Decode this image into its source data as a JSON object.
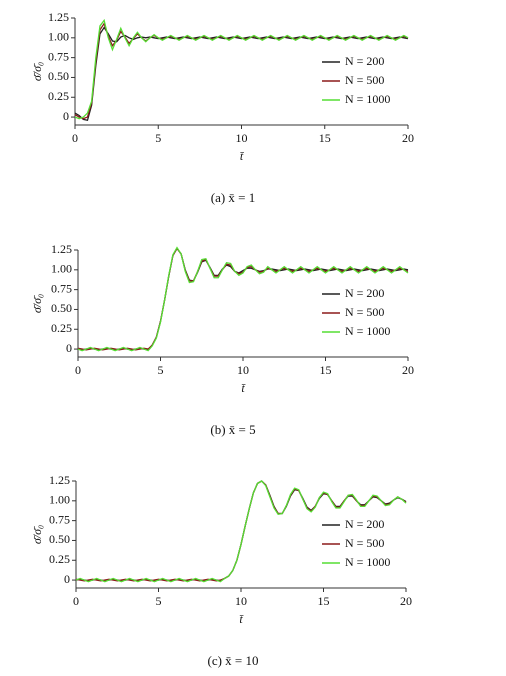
{
  "chart_data": [
    {
      "type": "line",
      "caption": "(a) x̄ = 1",
      "xlabel": "t̄",
      "ylabel": "σ̄/σ̄₀",
      "xlim": [
        0,
        20
      ],
      "xticks": [
        0,
        5,
        10,
        15,
        20
      ],
      "ylim": [
        -0.1,
        1.25
      ],
      "yticks": [
        0,
        0.25,
        {
          "value": 0.5,
          "label": "0.50"
        },
        0.75,
        {
          "value": 1,
          "label": "1.00"
        },
        1.25
      ],
      "x": [
        0,
        0.25,
        0.5,
        0.75,
        1,
        1.25,
        1.5,
        1.75,
        2,
        2.25,
        2.5,
        2.75,
        3,
        3.25,
        3.5,
        3.75,
        4,
        4.25,
        4.5,
        4.75,
        5,
        5.25,
        5.5,
        5.75,
        6,
        6.25,
        6.5,
        6.75,
        7,
        7.25,
        7.5,
        7.75,
        8,
        8.25,
        8.5,
        8.75,
        9,
        9.25,
        9.5,
        9.75,
        10,
        10.25,
        10.5,
        10.75,
        11,
        11.25,
        11.5,
        11.75,
        12,
        12.25,
        12.5,
        12.75,
        13,
        13.25,
        13.5,
        13.75,
        14,
        14.25,
        14.5,
        14.75,
        15,
        15.25,
        15.5,
        15.75,
        16,
        16.25,
        16.5,
        16.75,
        17,
        17.25,
        17.5,
        17.75,
        18,
        18.25,
        18.5,
        18.75,
        19,
        19.25,
        19.5,
        19.75,
        20
      ],
      "series": [
        {
          "name": "N = 200",
          "color": "#222222",
          "values": [
            0.05,
            0.02,
            -0.03,
            -0.04,
            0.15,
            0.65,
            1.05,
            1.13,
            1.05,
            0.96,
            0.95,
            1.01,
            1.03,
            1,
            0.98,
            1,
            1.01,
            1,
            1.01,
            1,
            0.99,
            1,
            1.01,
            1,
            0.99,
            1,
            1.01,
            1,
            0.99,
            1,
            1.01,
            1,
            0.99,
            1,
            1.01,
            1,
            0.99,
            1,
            1.01,
            1,
            0.99,
            1,
            1.01,
            1,
            0.99,
            1,
            1.01,
            1,
            0.99,
            1,
            1.01,
            1,
            0.99,
            1,
            1.01,
            1,
            0.99,
            1,
            1.01,
            1,
            0.99,
            1,
            1.01,
            1,
            0.99,
            1,
            1.01,
            1,
            0.99,
            1,
            1.01,
            1,
            0.99,
            1,
            1.01,
            1,
            0.99,
            1,
            1.01,
            1,
            0.99
          ]
        },
        {
          "name": "N = 500",
          "color": "#8b1a1a",
          "values": [
            0.03,
            0,
            -0.02,
            0,
            0.18,
            0.7,
            1.1,
            1.18,
            1.02,
            0.9,
            0.97,
            1.08,
            1.01,
            0.93,
            0.99,
            1.05,
            1,
            0.96,
            1,
            1.03,
            1,
            0.98,
            1,
            1.02,
            1,
            0.98,
            1,
            1.02,
            1,
            0.98,
            1,
            1.02,
            1,
            0.98,
            1,
            1.02,
            1,
            0.98,
            1,
            1.02,
            1,
            0.98,
            1,
            1.02,
            1,
            0.98,
            1,
            1.02,
            1,
            0.98,
            1,
            1.02,
            1,
            0.98,
            1,
            1.02,
            1,
            0.98,
            1,
            1.02,
            1,
            0.98,
            1,
            1.02,
            1,
            0.98,
            1,
            1.02,
            1,
            0.98,
            1,
            1.02,
            1,
            0.98,
            1,
            1.02,
            1,
            0.98,
            1,
            1.02,
            1
          ]
        },
        {
          "name": "N = 1000",
          "color": "#55dd33",
          "values": [
            0,
            -0.02,
            0,
            0.05,
            0.2,
            0.75,
            1.15,
            1.22,
            1,
            0.85,
            0.98,
            1.12,
            1,
            0.9,
            1,
            1.07,
            1,
            0.95,
            1,
            1.04,
            1,
            0.97,
            1,
            1.03,
            1,
            0.97,
            1,
            1.03,
            1,
            0.97,
            1,
            1.03,
            1,
            0.97,
            1,
            1.03,
            1,
            0.97,
            1,
            1.03,
            1,
            0.97,
            1,
            1.03,
            1,
            0.97,
            1,
            1.03,
            1,
            0.97,
            1,
            1.03,
            1,
            0.97,
            1,
            1.03,
            1,
            0.97,
            1,
            1.03,
            1,
            0.97,
            1,
            1.03,
            1,
            0.97,
            1,
            1.03,
            1,
            0.97,
            1,
            1.03,
            1,
            0.97,
            1,
            1.03,
            1,
            0.97,
            1,
            1.03,
            1
          ]
        }
      ]
    },
    {
      "type": "line",
      "caption": "(b) x̄ = 5",
      "xlabel": "t̄",
      "ylabel": "σ̄/σ̄₀",
      "xlim": [
        0,
        20
      ],
      "xticks": [
        0,
        5,
        10,
        15,
        20
      ],
      "ylim": [
        -0.1,
        1.25
      ],
      "yticks": [
        0,
        0.25,
        {
          "value": 0.5,
          "label": "0.50"
        },
        0.75,
        {
          "value": 1,
          "label": "1.00"
        },
        1.25
      ],
      "x": [
        0,
        0.25,
        0.5,
        0.75,
        1,
        1.25,
        1.5,
        1.75,
        2,
        2.25,
        2.5,
        2.75,
        3,
        3.25,
        3.5,
        3.75,
        4,
        4.25,
        4.5,
        4.75,
        5,
        5.25,
        5.5,
        5.75,
        6,
        6.25,
        6.5,
        6.75,
        7,
        7.25,
        7.5,
        7.75,
        8,
        8.25,
        8.5,
        8.75,
        9,
        9.25,
        9.5,
        9.75,
        10,
        10.25,
        10.5,
        10.75,
        11,
        11.25,
        11.5,
        11.75,
        12,
        12.25,
        12.5,
        12.75,
        13,
        13.25,
        13.5,
        13.75,
        14,
        14.25,
        14.5,
        14.75,
        15,
        15.25,
        15.5,
        15.75,
        16,
        16.25,
        16.5,
        16.75,
        17,
        17.25,
        17.5,
        17.75,
        18,
        18.25,
        18.5,
        18.75,
        19,
        19.25,
        19.5,
        19.75,
        20
      ],
      "series": [
        {
          "name": "N = 200",
          "color": "#222222",
          "values": [
            0,
            -0.01,
            0,
            0.01,
            0,
            -0.01,
            0,
            0.01,
            0,
            -0.01,
            0,
            0.01,
            0,
            -0.01,
            0,
            0.01,
            0,
            -0.01,
            0.05,
            0.15,
            0.35,
            0.62,
            0.92,
            1.18,
            1.27,
            1.2,
            1,
            0.87,
            0.86,
            0.97,
            1.1,
            1.12,
            1.03,
            0.93,
            0.93,
            1.01,
            1.06,
            1.04,
            0.98,
            0.96,
            0.99,
            1.02,
            1.02,
            1,
            0.98,
            0.99,
            1.01,
            1.01,
            1,
            0.99,
            1,
            1.01,
            1,
            0.99,
            1,
            1.01,
            1,
            0.99,
            1,
            1.01,
            1,
            0.99,
            1,
            1.01,
            1,
            0.99,
            1,
            1.01,
            1,
            0.99,
            1,
            1.01,
            1,
            0.99,
            1,
            1.01,
            1,
            0.99,
            1,
            1.01,
            1
          ]
        },
        {
          "name": "N = 500",
          "color": "#8b1a1a",
          "values": [
            0.01,
            0,
            -0.01,
            0,
            0.01,
            0,
            -0.01,
            0,
            0.01,
            0,
            -0.01,
            0,
            0.01,
            0,
            -0.01,
            0,
            0.01,
            0,
            0.05,
            0.15,
            0.35,
            0.62,
            0.92,
            1.18,
            1.27,
            1.2,
            0.99,
            0.86,
            0.86,
            0.98,
            1.11,
            1.13,
            1.02,
            0.92,
            0.92,
            1,
            1.07,
            1.06,
            0.98,
            0.95,
            0.97,
            1.03,
            1.04,
            1,
            0.97,
            0.98,
            1.02,
            1,
            0.98,
            1,
            1.02,
            1,
            0.98,
            1,
            1.02,
            1,
            0.98,
            1,
            1.02,
            1,
            0.98,
            1,
            1.02,
            1,
            0.98,
            1,
            1.02,
            1,
            0.98,
            1,
            1.02,
            1,
            0.98,
            1,
            1.02,
            1,
            0.98,
            1,
            1.02,
            1,
            0.98
          ]
        },
        {
          "name": "N = 1000",
          "color": "#55dd33",
          "values": [
            0,
            -0.02,
            0,
            0.02,
            0,
            -0.02,
            0,
            0.02,
            0,
            -0.02,
            0,
            0.02,
            0,
            -0.02,
            0,
            0.02,
            0,
            -0.02,
            0.04,
            0.14,
            0.34,
            0.62,
            0.93,
            1.19,
            1.28,
            1.2,
            0.98,
            0.84,
            0.85,
            0.98,
            1.13,
            1.14,
            1.02,
            0.9,
            0.9,
            1,
            1.09,
            1.08,
            0.98,
            0.93,
            0.96,
            1.04,
            1.06,
            1,
            0.95,
            0.97,
            1.04,
            1,
            0.96,
            1,
            1.04,
            1,
            0.96,
            1,
            1.04,
            1,
            0.96,
            1,
            1.04,
            1,
            0.96,
            1,
            1.04,
            1,
            0.96,
            1,
            1.04,
            1,
            0.96,
            1,
            1.04,
            1,
            0.96,
            1,
            1.04,
            1,
            0.96,
            1,
            1.04,
            1,
            0.96
          ]
        }
      ]
    },
    {
      "type": "line",
      "caption": "(c) x̄ = 10",
      "xlabel": "t̄",
      "ylabel": "σ̄/σ̄₀",
      "xlim": [
        0,
        20
      ],
      "xticks": [
        0,
        5,
        10,
        15,
        20
      ],
      "ylim": [
        -0.1,
        1.25
      ],
      "yticks": [
        0,
        0.25,
        {
          "value": 0.5,
          "label": "0.50"
        },
        0.75,
        {
          "value": 1,
          "label": "1.00"
        },
        1.25
      ],
      "x": [
        0,
        0.25,
        0.5,
        0.75,
        1,
        1.25,
        1.5,
        1.75,
        2,
        2.25,
        2.5,
        2.75,
        3,
        3.25,
        3.5,
        3.75,
        4,
        4.25,
        4.5,
        4.75,
        5,
        5.25,
        5.5,
        5.75,
        6,
        6.25,
        6.5,
        6.75,
        7,
        7.25,
        7.5,
        7.75,
        8,
        8.25,
        8.5,
        8.75,
        9,
        9.25,
        9.5,
        9.75,
        10,
        10.25,
        10.5,
        10.75,
        11,
        11.25,
        11.5,
        11.75,
        12,
        12.25,
        12.5,
        12.75,
        13,
        13.25,
        13.5,
        13.75,
        14,
        14.25,
        14.5,
        14.75,
        15,
        15.25,
        15.5,
        15.75,
        16,
        16.25,
        16.5,
        16.75,
        17,
        17.25,
        17.5,
        17.75,
        18,
        18.25,
        18.5,
        18.75,
        19,
        19.25,
        19.5,
        19.75,
        20
      ],
      "series": [
        {
          "name": "N = 200",
          "color": "#222222",
          "values": [
            0,
            0.01,
            0,
            -0.01,
            0,
            0.01,
            0,
            -0.01,
            0,
            0.01,
            0,
            -0.01,
            0,
            0.01,
            0,
            -0.01,
            0,
            0.01,
            0,
            -0.01,
            0,
            0.01,
            0,
            -0.01,
            0,
            0.01,
            0,
            -0.01,
            0,
            0.01,
            0,
            -0.01,
            0,
            0.01,
            0,
            -0.01,
            0.02,
            0.05,
            0.12,
            0.25,
            0.45,
            0.68,
            0.9,
            1.1,
            1.22,
            1.25,
            1.2,
            1.07,
            0.93,
            0.84,
            0.84,
            0.93,
            1.06,
            1.14,
            1.13,
            1.03,
            0.92,
            0.88,
            0.93,
            1.03,
            1.09,
            1.08,
            1,
            0.93,
            0.93,
            1,
            1.06,
            1.06,
            1,
            0.95,
            0.95,
            1,
            1.05,
            1.04,
            1,
            0.96,
            0.97,
            1.01,
            1.04,
            1.02,
            0.99
          ]
        },
        {
          "name": "N = 500",
          "color": "#8b1a1a",
          "values": [
            0.01,
            0,
            -0.01,
            0,
            0.01,
            0,
            -0.01,
            0,
            0.01,
            0,
            -0.01,
            0,
            0.01,
            0,
            -0.01,
            0,
            0.01,
            0,
            -0.01,
            0,
            0.01,
            0,
            -0.01,
            0,
            0.01,
            0,
            -0.01,
            0,
            0.01,
            0,
            -0.01,
            0,
            0.01,
            0,
            -0.01,
            0,
            0.02,
            0.05,
            0.12,
            0.25,
            0.45,
            0.68,
            0.9,
            1.1,
            1.22,
            1.25,
            1.2,
            1.06,
            0.92,
            0.84,
            0.84,
            0.94,
            1.07,
            1.15,
            1.13,
            1.02,
            0.91,
            0.87,
            0.93,
            1.04,
            1.1,
            1.08,
            1,
            0.92,
            0.92,
            1,
            1.07,
            1.07,
            1,
            0.94,
            0.94,
            1,
            1.06,
            1.05,
            1,
            0.95,
            0.96,
            1.01,
            1.05,
            1.02,
            0.98
          ]
        },
        {
          "name": "N = 1000",
          "color": "#55dd33",
          "values": [
            0,
            0.02,
            0,
            -0.02,
            0,
            0.02,
            0,
            -0.02,
            0,
            0.02,
            0,
            -0.02,
            0,
            0.02,
            0,
            -0.02,
            0,
            0.02,
            0,
            -0.02,
            0,
            0.02,
            0,
            -0.02,
            0,
            0.02,
            0,
            -0.02,
            0,
            0.02,
            0,
            -0.02,
            0,
            0.02,
            0,
            -0.02,
            0.02,
            0.05,
            0.12,
            0.25,
            0.45,
            0.68,
            0.9,
            1.1,
            1.22,
            1.25,
            1.19,
            1.05,
            0.91,
            0.83,
            0.84,
            0.94,
            1.08,
            1.16,
            1.14,
            1.02,
            0.9,
            0.86,
            0.92,
            1.04,
            1.11,
            1.09,
            0.99,
            0.91,
            0.91,
            0.99,
            1.07,
            1.08,
            1.01,
            0.93,
            0.93,
            1,
            1.07,
            1.06,
            1,
            0.94,
            0.95,
            1.01,
            1.05,
            1.02,
            0.97
          ]
        }
      ]
    }
  ]
}
